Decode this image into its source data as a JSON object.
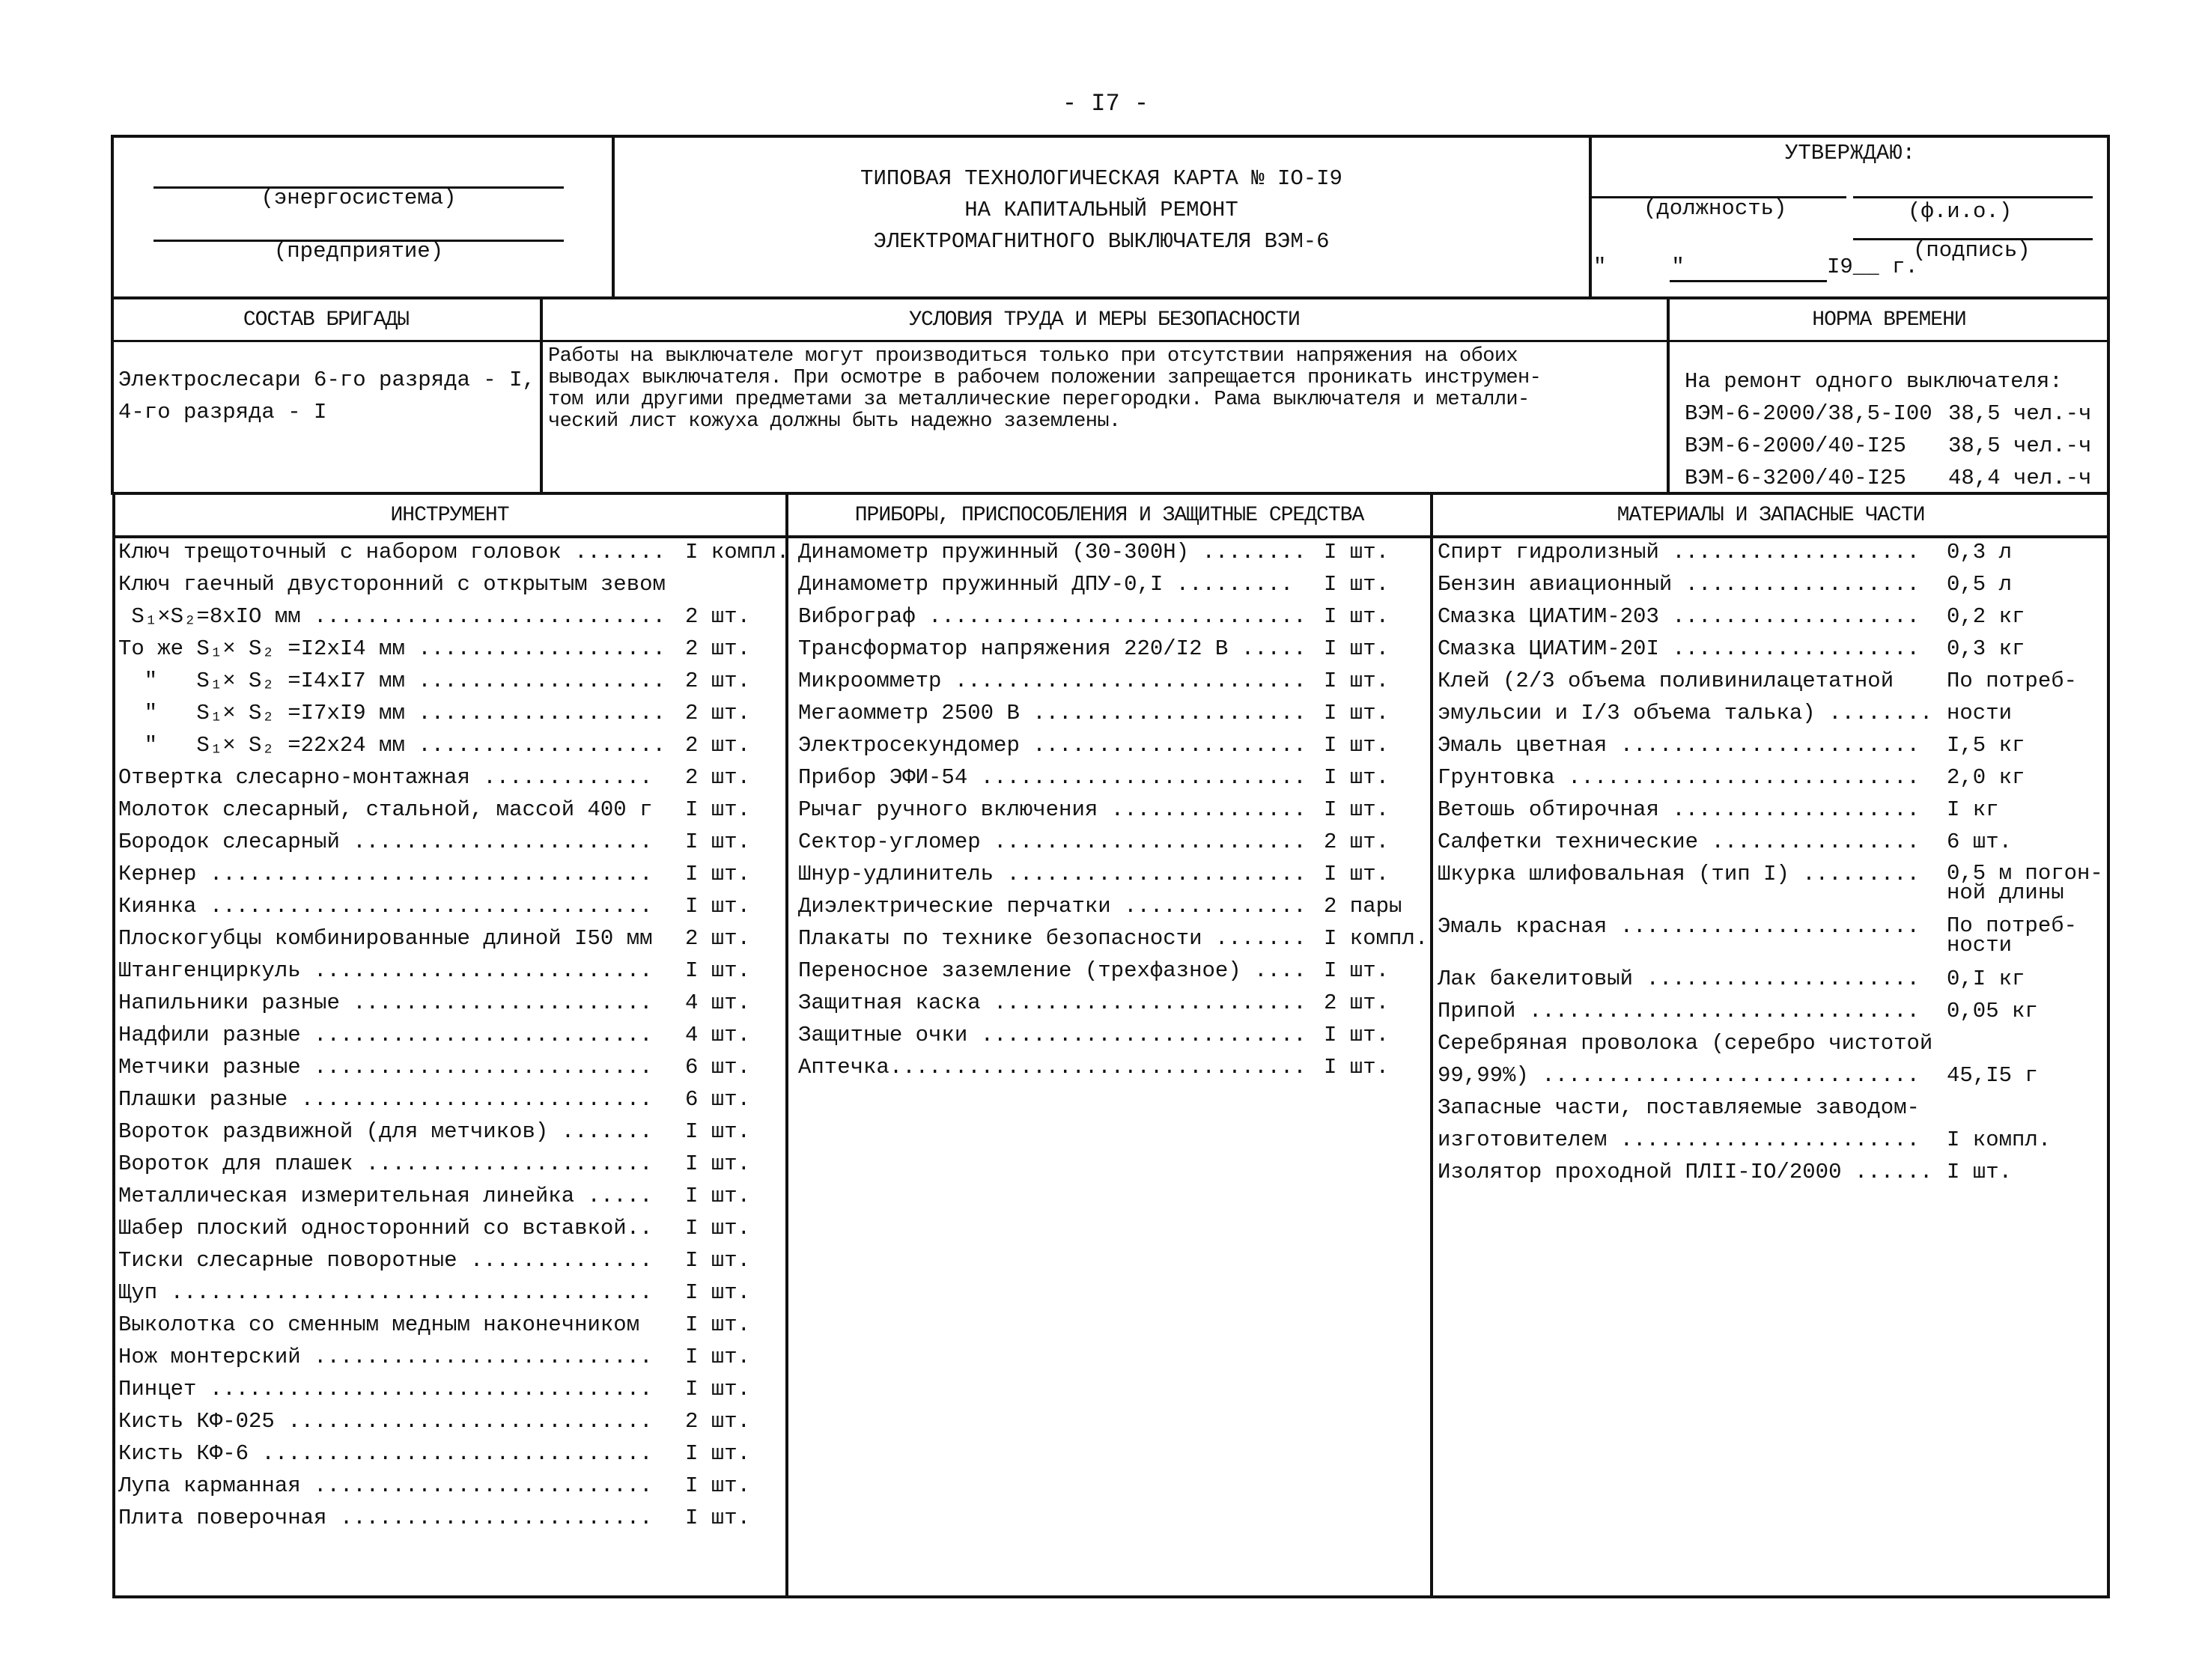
{
  "page_number": "- I7 -",
  "header": {
    "org_label_1": "(энергосистема)",
    "org_label_2": "(предприятие)",
    "title_lines": [
      "ТИПОВАЯ ТЕХНОЛОГИЧЕСКАЯ КАРТА № IO-I9",
      "НА КАПИТАЛЬНЫЙ РЕМОНТ",
      "ЭЛЕКТРОМАГНИТНОГО ВЫКЛЮЧАТЕЛЯ ВЭМ-6"
    ],
    "approve": "УТВЕРЖДАЮ:",
    "position_label": "(должность)",
    "name_label": "(ф.и.о.)",
    "signature_label": "(подпись)",
    "date_quotes": "\"     \"",
    "date_year": "I9__ г."
  },
  "section2": {
    "brigade_title": "СОСТАВ БРИГАДЫ",
    "conditions_title": "УСЛОВИЯ ТРУДА И МЕРЫ БЕЗОПАСНОСТИ",
    "norm_title": "НОРМА ВРЕМЕНИ",
    "brigade_lines": [
      "Электрослесари 6-го разряда - I,",
      "4-го разряда - I"
    ],
    "conditions_lines": [
      "Работы на выключателе могут производиться только при отсутствии напряжения на обоих",
      "выводах выключателя. При осмотре в рабочем положении запрещается проникать инструмен-",
      "том или другими предметами за металлические перегородки. Рама выключателя и металли-",
      "ческий лист кожуха должны быть надежно заземлены."
    ],
    "norm_intro": "На ремонт одного выключателя:",
    "norms": [
      {
        "model": "ВЭМ-6-2000/38,5-I00",
        "value": "38,5 чел.-ч"
      },
      {
        "model": "ВЭМ-6-2000/40-I25",
        "value": "38,5 чел.-ч"
      },
      {
        "model": "ВЭМ-6-3200/40-I25",
        "value": "48,4 чел.-ч"
      }
    ]
  },
  "tools": {
    "title": "ИНСТРУМЕНТ",
    "items": [
      {
        "name": "Ключ трещоточный с набором головок .......",
        "qty": "I компл."
      },
      {
        "name": "Ключ гаечный двусторонний с открытым зевом",
        "qty": ""
      },
      {
        "name": " S₁×S₂=8xIO мм ...........................",
        "qty": "2 шт."
      },
      {
        "name": "То же S₁× S₂ =I2xI4 мм ...................",
        "qty": "2 шт."
      },
      {
        "name": "  \"   S₁× S₂ =I4xI7 мм ...................",
        "qty": "2 шт."
      },
      {
        "name": "  \"   S₁× S₂ =I7xI9 мм ...................",
        "qty": "2 шт."
      },
      {
        "name": "  \"   S₁× S₂ =22x24 мм ...................",
        "qty": "2 шт."
      },
      {
        "name": "Отвертка слесарно-монтажная .............",
        "qty": "2 шт."
      },
      {
        "name": "Молоток слесарный, стальной, массой 400 г",
        "qty": "I шт."
      },
      {
        "name": "Бородок слесарный .......................",
        "qty": "I шт."
      },
      {
        "name": "Кернер ..................................",
        "qty": "I шт."
      },
      {
        "name": "Киянка ..................................",
        "qty": "I шт."
      },
      {
        "name": "Плоскогубцы комбинированные длиной I50 мм",
        "qty": "2 шт."
      },
      {
        "name": "Штангенциркуль ..........................",
        "qty": "I шт."
      },
      {
        "name": "Напильники разные .......................",
        "qty": "4 шт."
      },
      {
        "name": "Надфили разные ..........................",
        "qty": "4 шт."
      },
      {
        "name": "Метчики разные ..........................",
        "qty": "6 шт."
      },
      {
        "name": "Плашки разные ...........................",
        "qty": "6 шт."
      },
      {
        "name": "Вороток раздвижной (для метчиков) .......",
        "qty": "I шт."
      },
      {
        "name": "Вороток для плашек ......................",
        "qty": "I шт."
      },
      {
        "name": "Металлическая измерительная линейка .....",
        "qty": "I шт."
      },
      {
        "name": "Шабер плоский односторонний со вставкой..",
        "qty": "I шт."
      },
      {
        "name": "Тиски слесарные поворотные ..............",
        "qty": "I шт."
      },
      {
        "name": "Щуп .....................................",
        "qty": "I шт."
      },
      {
        "name": "Выколотка со сменным медным наконечником",
        "qty": "I шт."
      },
      {
        "name": "Нож монтерский ..........................",
        "qty": "I шт."
      },
      {
        "name": "Пинцет ..................................",
        "qty": "I шт."
      },
      {
        "name": "Кисть КФ-025 ............................",
        "qty": "2 шт."
      },
      {
        "name": "Кисть КФ-6 ..............................",
        "qty": "I шт."
      },
      {
        "name": "Лупа карманная ..........................",
        "qty": "I шт."
      },
      {
        "name": "Плита поверочная ........................",
        "qty": "I шт."
      }
    ]
  },
  "devices": {
    "title": "ПРИБОРЫ, ПРИСПОСОБЛЕНИЯ И ЗАЩИТНЫЕ СРЕДСТВА",
    "items": [
      {
        "name": "Динамометр пружинный (30-300Н) ........",
        "qty": "I шт."
      },
      {
        "name": "Динамометр пружинный ДПУ-0,I .........",
        "qty": "I шт."
      },
      {
        "name": "Виброграф .............................",
        "qty": "I шт."
      },
      {
        "name": "Трансформатор напряжения 220/I2 В .....",
        "qty": "I шт."
      },
      {
        "name": "Микроомметр ...........................",
        "qty": "I шт."
      },
      {
        "name": "Мегаомметр 2500 В .....................",
        "qty": "I шт."
      },
      {
        "name": "Электросекундомер .....................",
        "qty": "I шт."
      },
      {
        "name": "Прибор ЭФИ-54 .........................",
        "qty": "I шт."
      },
      {
        "name": "Рычаг ручного включения ...............",
        "qty": "I шт."
      },
      {
        "name": "Сектор-угломер ........................",
        "qty": "2 шт."
      },
      {
        "name": "Шнур-удлинитель .......................",
        "qty": "I шт."
      },
      {
        "name": "Диэлектрические перчатки ..............",
        "qty": "2 пары"
      },
      {
        "name": "Плакаты по технике безопасности .......",
        "qty": "I компл."
      },
      {
        "name": "Переносное заземление (трехфазное) ....",
        "qty": "I шт."
      },
      {
        "name": "Защитная каска ........................",
        "qty": "2 шт."
      },
      {
        "name": "Защитные очки .........................",
        "qty": "I шт."
      },
      {
        "name": "Аптечка................................",
        "qty": "I шт."
      }
    ]
  },
  "materials": {
    "title": "МАТЕРИАЛЫ И ЗАПАСНЫЕ ЧАСТИ",
    "items": [
      {
        "name": "Спирт гидролизный ...................",
        "qty": "0,3 л"
      },
      {
        "name": "Бензин авиационный ..................",
        "qty": "0,5 л"
      },
      {
        "name": "Смазка ЦИАТИМ-203 ...................",
        "qty": "0,2 кг"
      },
      {
        "name": "Смазка ЦИАТИМ-20I ...................",
        "qty": "0,3 кг"
      },
      {
        "name": "Клей (2/3 объема поливинилацетатной",
        "qty": "По потреб-"
      },
      {
        "name": "эмульсии и I/3 объема талька) ........",
        "qty": "ности"
      },
      {
        "name": "Эмаль цветная .......................",
        "qty": "I,5 кг"
      },
      {
        "name": "Грунтовка ...........................",
        "qty": "2,0 кг"
      },
      {
        "name": "Ветошь обтирочная ...................",
        "qty": "I кг"
      },
      {
        "name": "Салфетки технические ................",
        "qty": "6 шт."
      },
      {
        "name": "Шкурка шлифовальная (тип I) .........",
        "qty": "0,5 м погон-\nной длины",
        "tall": true
      },
      {
        "name": "Эмаль красная .......................",
        "qty": "По потреб-\nности",
        "tall": true
      },
      {
        "name": "Лак бакелитовый .....................",
        "qty": "0,I кг"
      },
      {
        "name": "Припой ..............................",
        "qty": "0,05 кг"
      },
      {
        "name": "Серебряная проволока (серебро чистотой",
        "qty": ""
      },
      {
        "name": "99,99%) .............................",
        "qty": "45,I5 г"
      },
      {
        "name": "Запасные части, поставляемые заводом-",
        "qty": ""
      },
      {
        "name": "изготовителем .......................",
        "qty": "I компл."
      },
      {
        "name": "Изолятор проходной ПЛII-IO/2000 ......",
        "qty": "I шт."
      }
    ]
  }
}
